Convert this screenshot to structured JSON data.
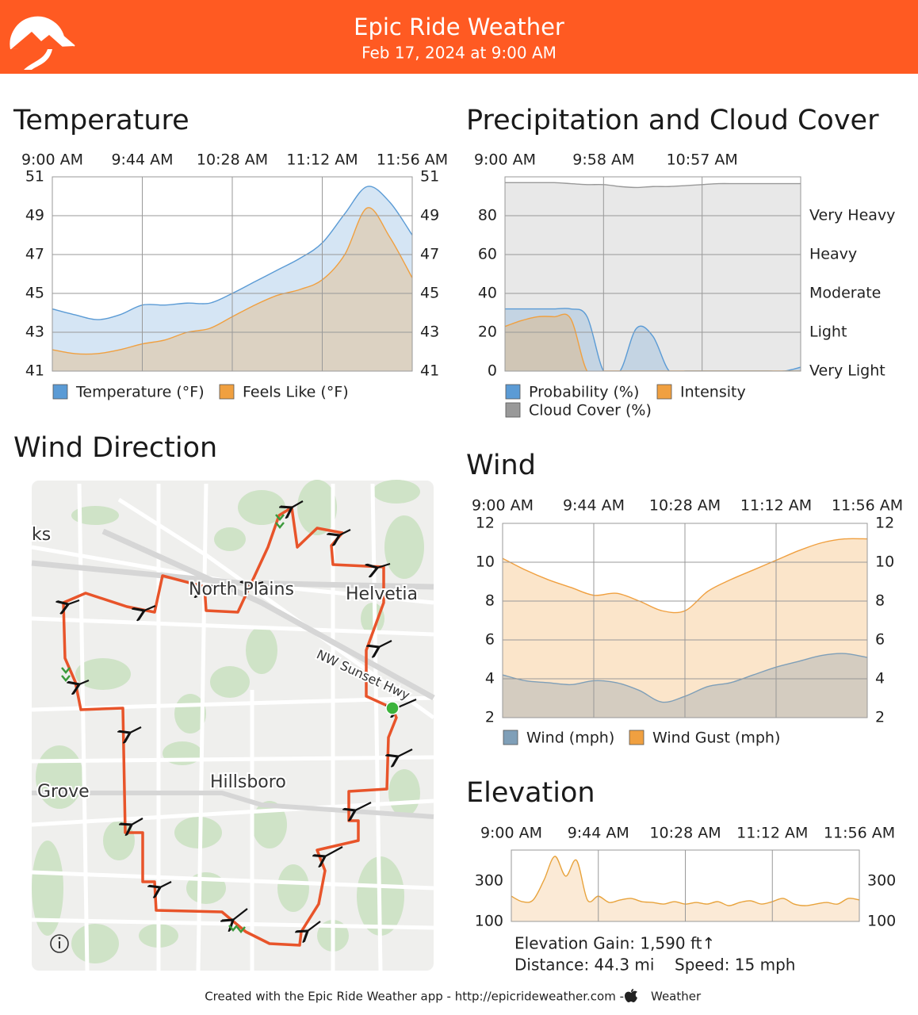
{
  "header": {
    "title": "Epic Ride Weather",
    "subtitle": "Feb 17, 2024 at 9:00 AM"
  },
  "chart_data": [
    {
      "type": "area",
      "title": "Temperature",
      "categories": [
        "9:00 AM",
        null,
        null,
        null,
        "9:44 AM",
        null,
        null,
        null,
        "10:28 AM",
        null,
        null,
        null,
        "11:12 AM",
        null,
        null,
        null,
        "11:56 AM"
      ],
      "series": [
        {
          "name": "Temperature (°F)",
          "color": "#5b9bd5",
          "values": [
            44.2,
            43.9,
            43.65,
            43.9,
            44.4,
            44.4,
            44.5,
            44.5,
            45.0,
            45.6,
            46.2,
            46.8,
            47.6,
            49.1,
            50.5,
            49.7,
            48.0
          ]
        },
        {
          "name": "Feels Like (°F)",
          "color": "#f0a040",
          "values": [
            42.1,
            41.9,
            41.9,
            42.1,
            42.4,
            42.6,
            43.0,
            43.2,
            43.8,
            44.4,
            44.9,
            45.2,
            45.7,
            47.0,
            49.4,
            47.9,
            45.8
          ]
        }
      ],
      "ylim": [
        41,
        51
      ],
      "yticks": [
        41,
        43,
        45,
        47,
        49,
        51
      ],
      "grid": true
    },
    {
      "type": "area",
      "title": "Precipitation and Cloud Cover",
      "categories": [
        "9:00 AM",
        null,
        null,
        null,
        null,
        null,
        "9:58 AM",
        null,
        null,
        null,
        null,
        null,
        "10:57 AM",
        null,
        null,
        null,
        null,
        null,
        null
      ],
      "series": [
        {
          "name": "Probability (%)",
          "color": "#5b9bd5",
          "values": [
            32,
            32,
            32,
            32,
            32,
            28,
            0,
            0,
            22,
            18,
            0,
            0,
            0,
            0,
            0,
            0,
            0,
            0,
            2
          ]
        },
        {
          "name": "Intensity",
          "color": "#f0a040",
          "values": [
            23,
            26,
            28,
            28,
            27,
            0,
            0,
            0,
            0,
            0,
            0,
            0,
            0,
            0,
            0,
            0,
            0,
            0,
            0
          ]
        },
        {
          "name": "Cloud Cover (%)",
          "color": "#999999",
          "values": [
            97,
            97,
            97,
            97,
            96.5,
            96,
            96,
            95,
            94.5,
            95,
            95,
            95.5,
            96,
            96.5,
            96.5,
            96.5,
            96.5,
            96.5,
            96.5
          ]
        }
      ],
      "ylim": [
        0,
        100
      ],
      "yticks": [
        0,
        20,
        40,
        60,
        80
      ],
      "y2lim": [
        0,
        100
      ],
      "y2ticks": [
        {
          "value": 0,
          "label": "Very Light"
        },
        {
          "value": 20,
          "label": "Light"
        },
        {
          "value": 40,
          "label": "Moderate"
        },
        {
          "value": 60,
          "label": "Heavy"
        },
        {
          "value": 80,
          "label": "Very Heavy"
        }
      ],
      "grid": true
    },
    {
      "type": "area",
      "title": "Wind",
      "categories": [
        "9:00 AM",
        null,
        null,
        null,
        "9:44 AM",
        null,
        null,
        null,
        "10:28 AM",
        null,
        null,
        null,
        "11:12 AM",
        null,
        null,
        null,
        "11:56 AM"
      ],
      "series": [
        {
          "name": "Wind (mph)",
          "color": "#7f9fb8",
          "values": [
            4.2,
            3.9,
            3.8,
            3.7,
            3.9,
            3.8,
            3.4,
            2.8,
            3.1,
            3.6,
            3.8,
            4.2,
            4.6,
            4.9,
            5.2,
            5.3,
            5.1
          ]
        },
        {
          "name": "Wind Gust (mph)",
          "color": "#f0a040",
          "values": [
            10.2,
            9.6,
            9.1,
            8.7,
            8.3,
            8.4,
            8.0,
            7.5,
            7.5,
            8.5,
            9.1,
            9.6,
            10.1,
            10.6,
            11.0,
            11.2,
            11.2
          ]
        }
      ],
      "ylim": [
        2,
        12
      ],
      "yticks": [
        2,
        4,
        6,
        8,
        10,
        12
      ],
      "grid": true
    },
    {
      "type": "area",
      "title": "Elevation",
      "categories": [
        "9:00 AM",
        null,
        null,
        null,
        null,
        null,
        null,
        null,
        "9:44 AM",
        null,
        null,
        null,
        null,
        null,
        null,
        null,
        "10:28 AM",
        null,
        null,
        null,
        null,
        null,
        null,
        null,
        "11:12 AM",
        null,
        null,
        null,
        null,
        null,
        null,
        null,
        "11:56 AM"
      ],
      "color": "#e8a33c",
      "values": [
        225,
        198,
        206,
        304,
        422,
        324,
        402,
        206,
        225,
        194,
        206,
        214,
        198,
        194,
        186,
        198,
        186,
        194,
        186,
        198,
        178,
        194,
        202,
        186,
        198,
        214,
        186,
        178,
        186,
        194,
        186,
        214,
        206
      ],
      "ylim": [
        100,
        453
      ],
      "yticks": [
        100,
        300
      ],
      "grid": false
    }
  ],
  "map": {
    "title": "Wind Direction",
    "labels": [
      "ks",
      "North Plains",
      "Helvetia",
      "NW Sunset Hwy",
      "Grove",
      "Hillsboro"
    ]
  },
  "stats": {
    "gain": "Elevation Gain: 1,590 ft↑",
    "distance": "Distance: 44.3 mi",
    "speed": "Speed: 15 mph"
  },
  "footer": {
    "text": "Created with the Epic Ride Weather app - http://epicrideweather.com - ",
    "brand": "Weather"
  }
}
